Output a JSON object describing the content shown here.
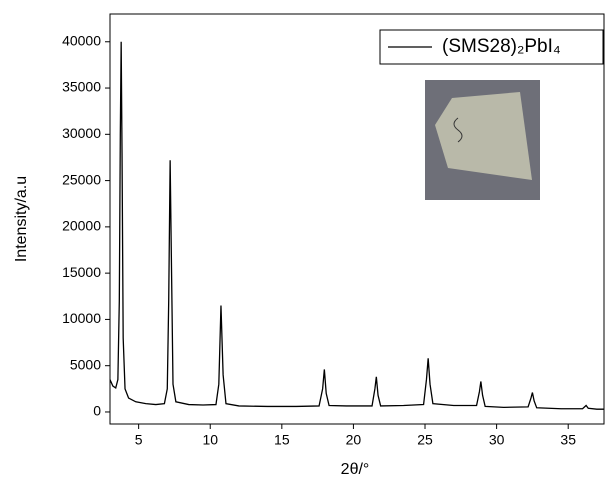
{
  "chart_data": {
    "type": "line",
    "x_label": "2θ/°",
    "y_label": "Intensity/a.u",
    "xlim": [
      3,
      37.5
    ],
    "ylim": [
      -1300,
      43000
    ],
    "xticks": [
      5,
      10,
      15,
      20,
      25,
      30,
      35
    ],
    "yticks": [
      0,
      5000,
      10000,
      15000,
      20000,
      25000,
      30000,
      35000,
      40000
    ],
    "legend": "upper right",
    "series": [
      {
        "name": "(SMS28)₂PbI₄",
        "color": "#000000",
        "x": [
          3.0,
          3.2,
          3.4,
          3.55,
          3.65,
          3.72,
          3.78,
          3.84,
          3.92,
          4.05,
          4.3,
          4.8,
          5.5,
          6.2,
          6.8,
          7.0,
          7.1,
          7.2,
          7.3,
          7.4,
          7.6,
          8.5,
          9.5,
          10.4,
          10.6,
          10.75,
          10.9,
          11.1,
          12,
          14,
          16,
          17.6,
          17.85,
          17.97,
          18.1,
          18.3,
          19.5,
          21.3,
          21.5,
          21.6,
          21.72,
          21.9,
          23.5,
          24.9,
          25.1,
          25.22,
          25.35,
          25.55,
          27,
          28.6,
          28.8,
          28.9,
          29.02,
          29.2,
          30.5,
          32.2,
          32.4,
          32.5,
          32.62,
          32.8,
          34.5,
          36.0,
          36.25,
          36.4,
          37.0,
          37.5
        ],
        "values": [
          3500,
          2800,
          2600,
          3500,
          12000,
          30000,
          40000,
          28000,
          8000,
          2500,
          1500,
          1100,
          900,
          800,
          900,
          2500,
          12000,
          27200,
          15000,
          3000,
          1100,
          800,
          750,
          800,
          3000,
          11500,
          4000,
          900,
          650,
          600,
          600,
          650,
          2500,
          4600,
          2000,
          700,
          650,
          650,
          2500,
          3800,
          1800,
          650,
          700,
          800,
          3500,
          5800,
          3000,
          900,
          700,
          700,
          2200,
          3300,
          1800,
          600,
          500,
          550,
          1500,
          2100,
          1200,
          450,
          350,
          350,
          700,
          400,
          300,
          300
        ]
      }
    ]
  }
}
